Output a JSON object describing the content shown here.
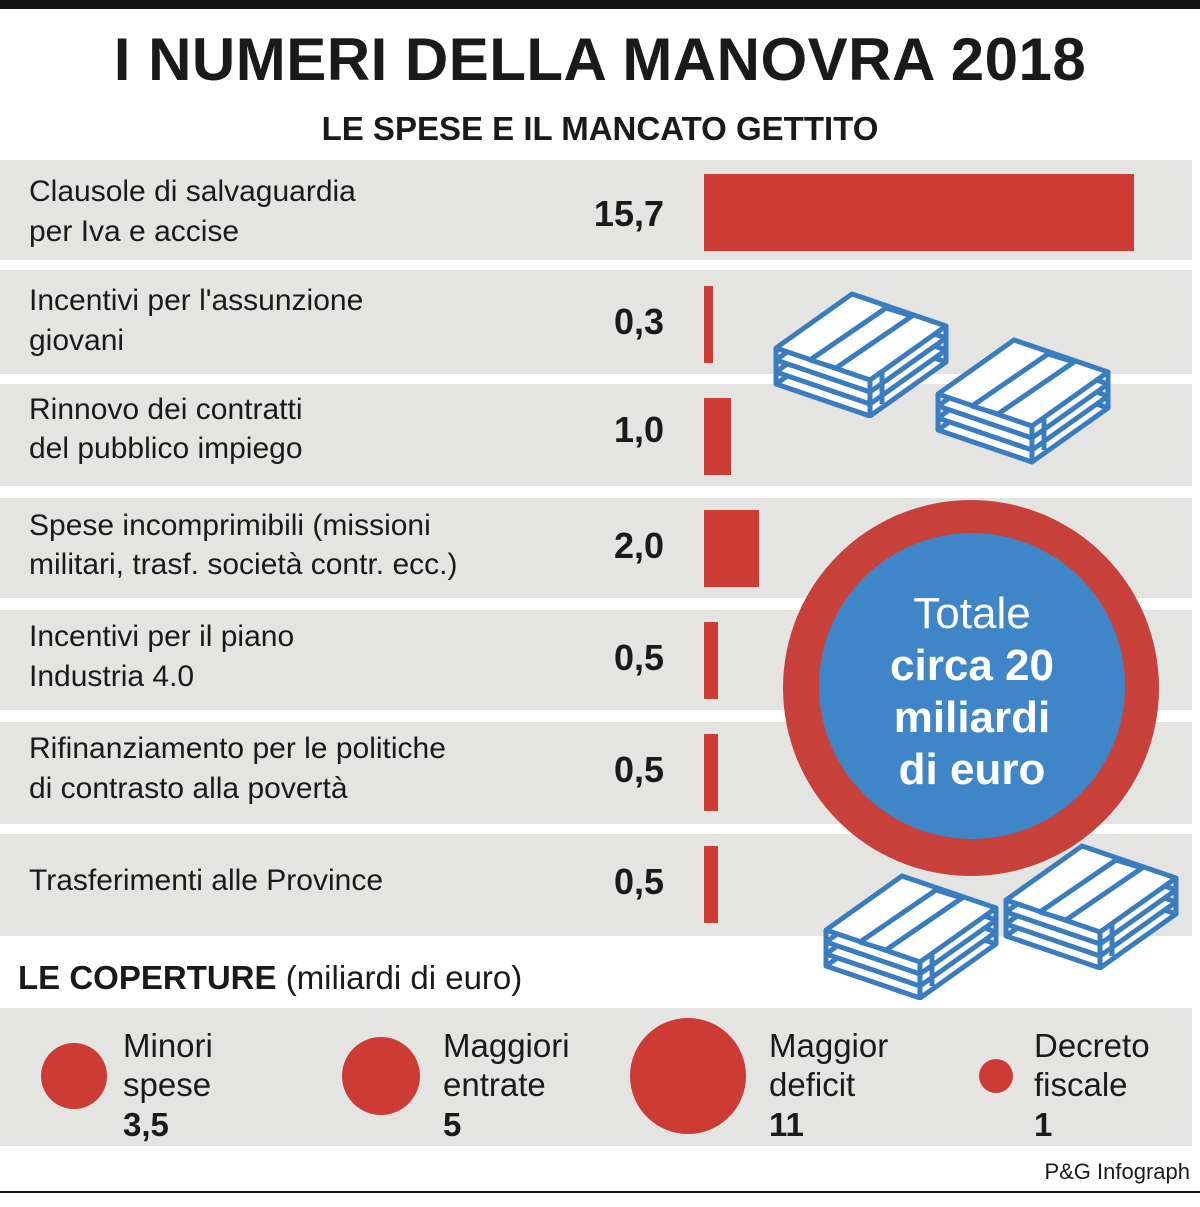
{
  "title": "I NUMERI DELLA MANOVRA 2018",
  "subtitle": "LE SPESE E IL MANCATO GETTITO",
  "chart_data": {
    "type": "bar",
    "orientation": "horizontal",
    "title": "LE SPESE E IL MANCATO GETTITO",
    "categories": [
      "Clausole di salvaguardia per Iva e accise",
      "Incentivi per l'assunzione giovani",
      "Rinnovo dei contratti del pubblico impiego",
      "Spese incomprimibili (missioni militari, trasf. società contr. ecc.)",
      "Incentivi per il piano Industria 4.0",
      "Rifinanziamento per le politiche di contrasto alla povertà",
      "Trasferimenti alle Province"
    ],
    "values": [
      15.7,
      0.3,
      1.0,
      2.0,
      0.5,
      0.5,
      0.5
    ],
    "value_labels": [
      "15,7",
      "0,3",
      "1,0",
      "2,0",
      "0,5",
      "0,5",
      "0,5"
    ],
    "label_lines": [
      [
        "Clausole di salvaguardia",
        "per Iva e accise"
      ],
      [
        "Incentivi per l'assunzione",
        "giovani"
      ],
      [
        "Rinnovo dei contratti",
        "del pubblico impiego"
      ],
      [
        "Spese incomprimibili (missioni",
        "militari, trasf. società contr. ecc.)"
      ],
      [
        "Incentivi per il piano",
        "Industria 4.0"
      ],
      [
        "Rifinanziamento per le politiche",
        "di contrasto alla povertà"
      ],
      [
        "Trasferimenti alle Province"
      ]
    ],
    "bar_color": "#cd3b35",
    "total": {
      "line1": "Totale",
      "line2": "circa 20",
      "line3": "miliardi",
      "line4": "di euro"
    },
    "coverage": {
      "heading_bold": "LE COPERTURE",
      "heading_unit": "(miliardi di euro)",
      "items": [
        {
          "label_lines": [
            "Minori",
            "spese"
          ],
          "value": 3.5,
          "value_label": "3,5"
        },
        {
          "label_lines": [
            "Maggiori",
            "entrate"
          ],
          "value": 5,
          "value_label": "5"
        },
        {
          "label_lines": [
            "Maggior",
            "deficit"
          ],
          "value": 11,
          "value_label": "11"
        },
        {
          "label_lines": [
            "Decreto",
            "fiscale"
          ],
          "value": 1,
          "value_label": "1"
        }
      ]
    }
  },
  "credit": "P&G Infograph",
  "colors": {
    "accent_red": "#cd3b35",
    "badge_blue": "#3f86c8",
    "money_blue": "#3a7cc0",
    "row_bg": "#e4e4e2"
  },
  "icons": [
    "money-stack-icon"
  ]
}
